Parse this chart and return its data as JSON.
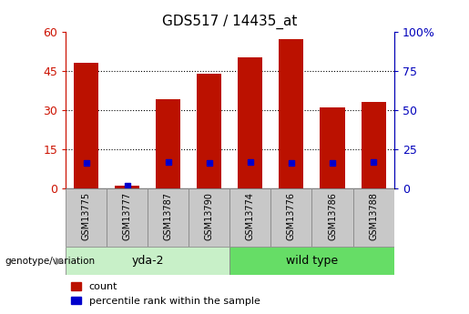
{
  "title": "GDS517 / 14435_at",
  "samples": [
    "GSM13775",
    "GSM13777",
    "GSM13787",
    "GSM13790",
    "GSM13774",
    "GSM13776",
    "GSM13786",
    "GSM13788"
  ],
  "counts": [
    48,
    1,
    34,
    44,
    50,
    57,
    31,
    33
  ],
  "percentile_ranks": [
    16,
    2,
    17,
    16,
    17,
    16,
    16,
    17
  ],
  "groups": [
    {
      "label": "yda-2",
      "start": 0,
      "end": 4
    },
    {
      "label": "wild type",
      "start": 4,
      "end": 8
    }
  ],
  "group_colors": [
    "#c8f0c8",
    "#66dd66"
  ],
  "bar_color": "#bb1100",
  "dot_color": "#0000cc",
  "left_ylim": [
    0,
    60
  ],
  "right_ylim": [
    0,
    100
  ],
  "left_yticks": [
    0,
    15,
    30,
    45,
    60
  ],
  "right_yticks": [
    0,
    25,
    50,
    75,
    100
  ],
  "right_yticklabels": [
    "0",
    "25",
    "50",
    "75",
    "100%"
  ],
  "grid_values": [
    15,
    30,
    45
  ],
  "left_axis_color": "#cc1100",
  "right_axis_color": "#0000bb",
  "bar_width": 0.6,
  "xlabel_group": "genotype/variation",
  "legend_count": "count",
  "legend_percentile": "percentile rank within the sample",
  "sample_box_color": "#c8c8c8"
}
